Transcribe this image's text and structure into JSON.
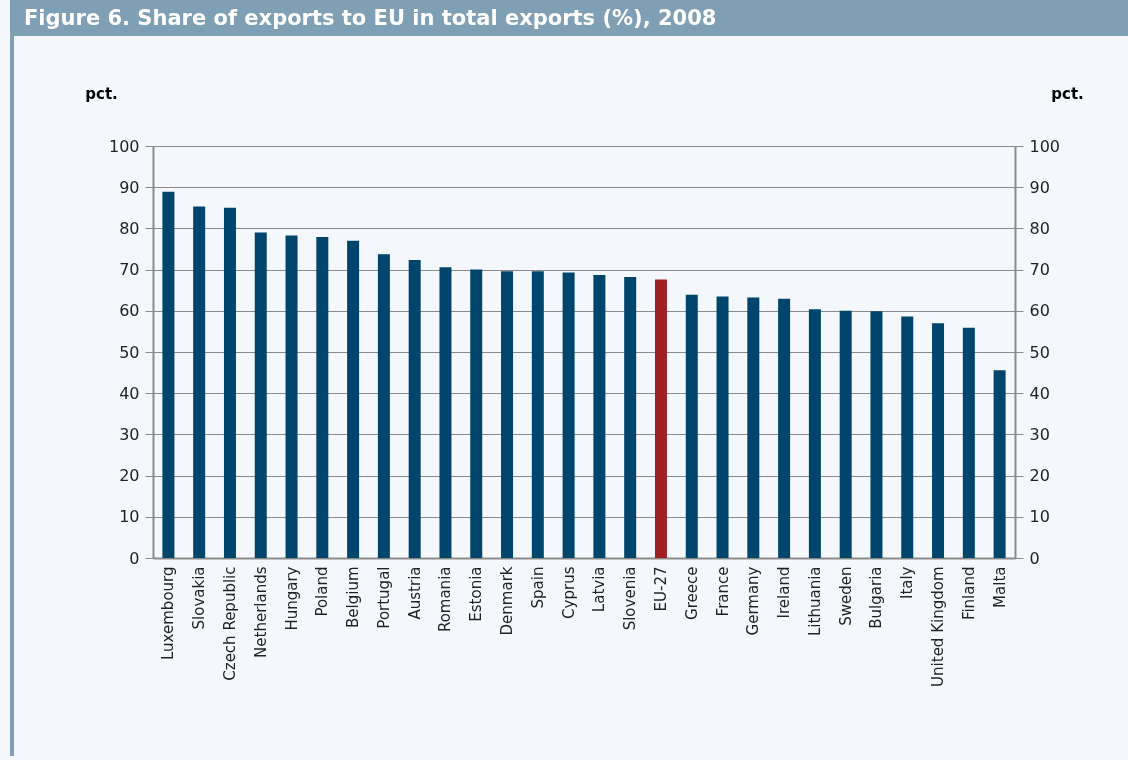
{
  "chart_data": {
    "type": "bar",
    "title": "Figure 6. Share of exports to EU in total exports (%), 2008",
    "ylabel": "pct.",
    "y2label": "pct.",
    "categories": [
      "Luxembourg",
      "Slovakia",
      "Czech Republic",
      "Netherlands",
      "Hungary",
      "Poland",
      "Belgium",
      "Portugal",
      "Austria",
      "Romania",
      "Estonia",
      "Denmark",
      "Spain",
      "Cyprus",
      "Latvia",
      "Slovenia",
      "EU-27",
      "Greece",
      "France",
      "Germany",
      "Ireland",
      "Lithuania",
      "Sweden",
      "Bulgaria",
      "Italy",
      "United Kingdom",
      "Finland",
      "Malta"
    ],
    "values": [
      88.9,
      85.3,
      85.0,
      79.0,
      78.3,
      77.9,
      77.0,
      73.7,
      72.3,
      70.6,
      70.0,
      69.6,
      69.6,
      69.3,
      68.7,
      68.2,
      67.6,
      63.9,
      63.5,
      63.2,
      62.9,
      60.4,
      60.0,
      59.9,
      58.6,
      57.0,
      55.9,
      45.6
    ],
    "colors": [
      "#00456b",
      "#00456b",
      "#00456b",
      "#00456b",
      "#00456b",
      "#00456b",
      "#00456b",
      "#00456b",
      "#00456b",
      "#00456b",
      "#00456b",
      "#00456b",
      "#00456b",
      "#00456b",
      "#00456b",
      "#00456b",
      "#a01f24",
      "#00456b",
      "#00456b",
      "#00456b",
      "#00456b",
      "#00456b",
      "#00456b",
      "#00456b",
      "#00456b",
      "#00456b",
      "#00456b",
      "#00456b"
    ],
    "ylim": [
      0,
      100
    ],
    "yticks": [
      0,
      10,
      20,
      30,
      40,
      50,
      60,
      70,
      80,
      90,
      100
    ],
    "y2lim": [
      0,
      100
    ],
    "y2ticks": [
      0,
      10,
      20,
      30,
      40,
      50,
      60,
      70,
      80,
      90,
      100
    ],
    "grid": "y"
  }
}
